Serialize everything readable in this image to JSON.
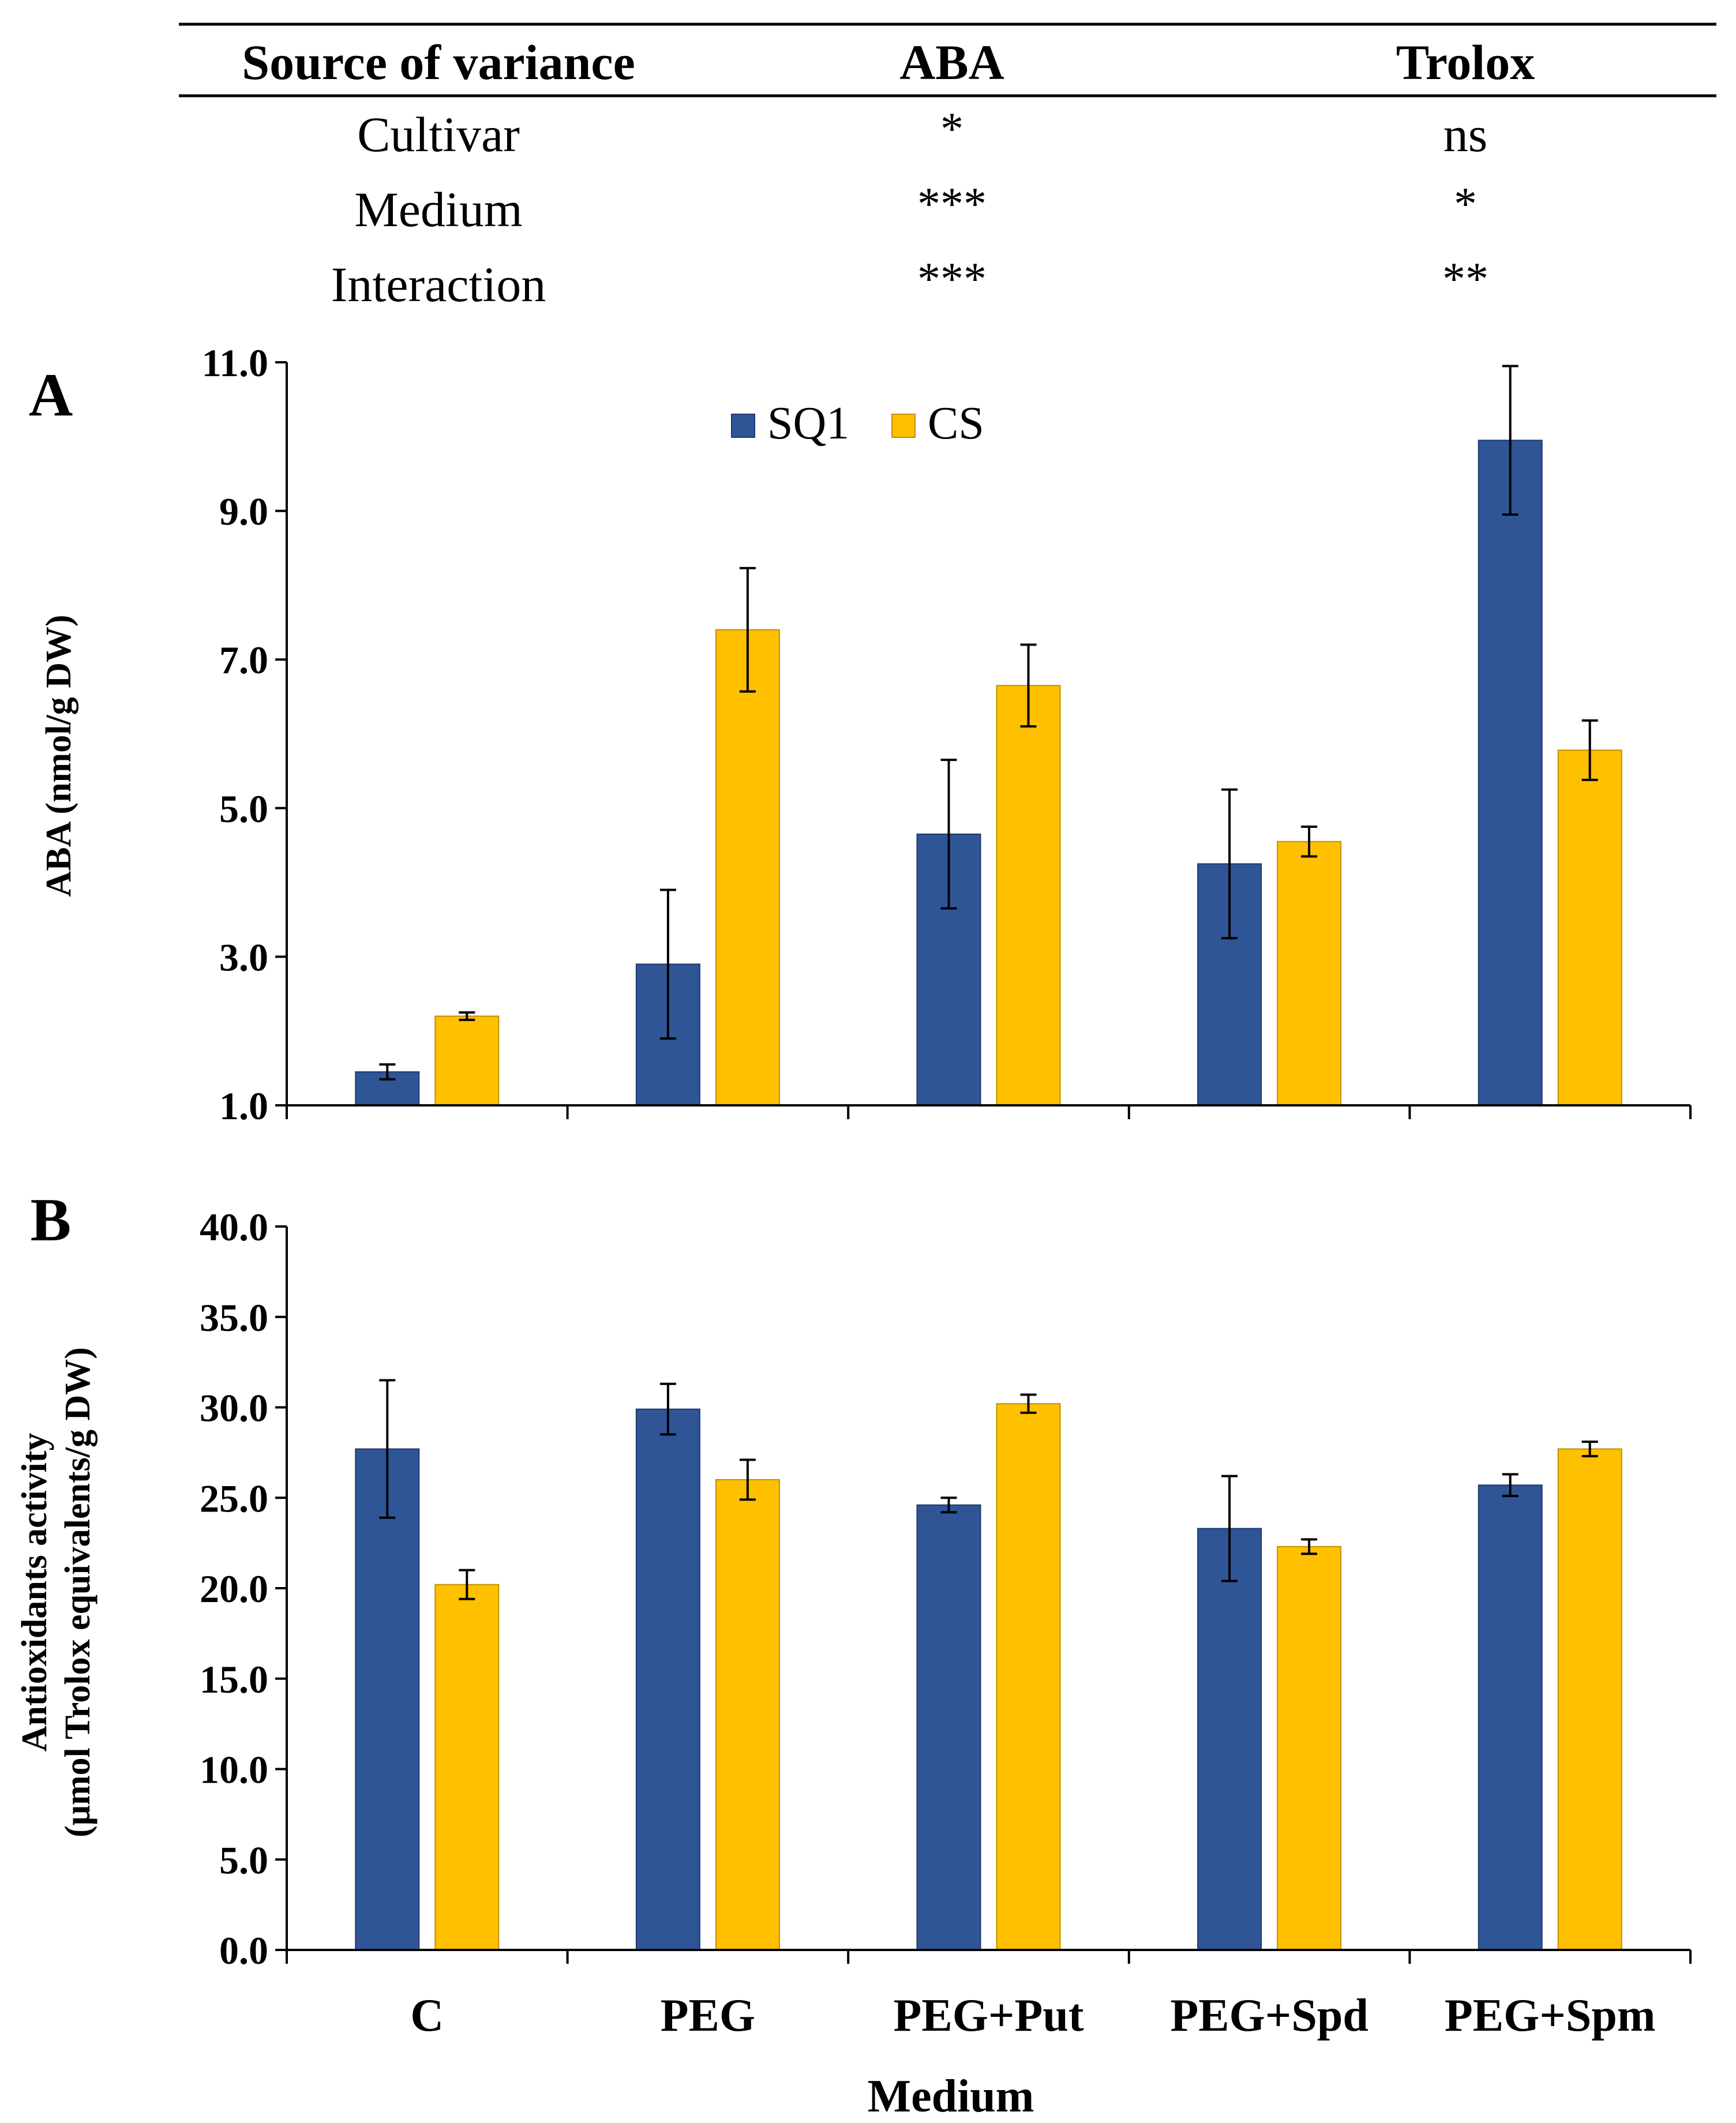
{
  "anova_table": {
    "headers": [
      "Source of variance",
      "ABA",
      "Trolox"
    ],
    "rows": [
      {
        "source": "Cultivar",
        "aba": "*",
        "trolox": "ns"
      },
      {
        "source": "Medium",
        "aba": "***",
        "trolox": "*"
      },
      {
        "source": "Interaction",
        "aba": "***",
        "trolox": "**"
      }
    ]
  },
  "colors": {
    "SQ1": "#2f5597",
    "CS": "#ffc000",
    "axis": "#000000"
  },
  "chart_data": [
    {
      "type": "bar",
      "panel_label": "A",
      "title": "",
      "xlabel": "",
      "ylabel": "ABA (nmol/g DW)",
      "ylim": [
        1.0,
        11.0
      ],
      "yticks": [
        "1.0",
        "3.0",
        "5.0",
        "7.0",
        "9.0",
        "11.0"
      ],
      "ytick_values": [
        1,
        3,
        5,
        7,
        9,
        11
      ],
      "categories": [
        "C",
        "PEG",
        "PEG+Put",
        "PEG+Spd",
        "PEG+Spm"
      ],
      "show_category_labels": false,
      "legend": {
        "position": "top-center",
        "entries": [
          "SQ1",
          "CS"
        ]
      },
      "grid": false,
      "series": [
        {
          "name": "SQ1",
          "values": [
            1.45,
            2.9,
            4.65,
            4.25,
            9.95
          ],
          "errors": [
            0.1,
            1.0,
            1.0,
            1.0,
            1.0
          ]
        },
        {
          "name": "CS",
          "values": [
            2.2,
            7.4,
            6.65,
            4.55,
            5.78
          ],
          "errors": [
            0.05,
            0.83,
            0.55,
            0.2,
            0.4
          ]
        }
      ]
    },
    {
      "type": "bar",
      "panel_label": "B",
      "title": "",
      "xlabel": "Medium",
      "ylabel": [
        "Antioxidants activity",
        "(μmol Trolox equivalents/g DW)"
      ],
      "ylim": [
        0.0,
        40.0
      ],
      "yticks": [
        "0.0",
        "5.0",
        "10.0",
        "15.0",
        "20.0",
        "25.0",
        "30.0",
        "35.0",
        "40.0"
      ],
      "ytick_values": [
        0,
        5,
        10,
        15,
        20,
        25,
        30,
        35,
        40
      ],
      "categories": [
        "C",
        "PEG",
        "PEG+Put",
        "PEG+Spd",
        "PEG+Spm"
      ],
      "show_category_labels": true,
      "grid": false,
      "series": [
        {
          "name": "SQ1",
          "values": [
            27.7,
            29.9,
            24.6,
            23.3,
            25.7
          ],
          "errors": [
            3.8,
            1.4,
            0.4,
            2.9,
            0.6
          ]
        },
        {
          "name": "CS",
          "values": [
            20.2,
            26.0,
            30.2,
            22.3,
            27.7
          ],
          "errors": [
            0.8,
            1.1,
            0.5,
            0.4,
            0.4
          ]
        }
      ]
    }
  ]
}
